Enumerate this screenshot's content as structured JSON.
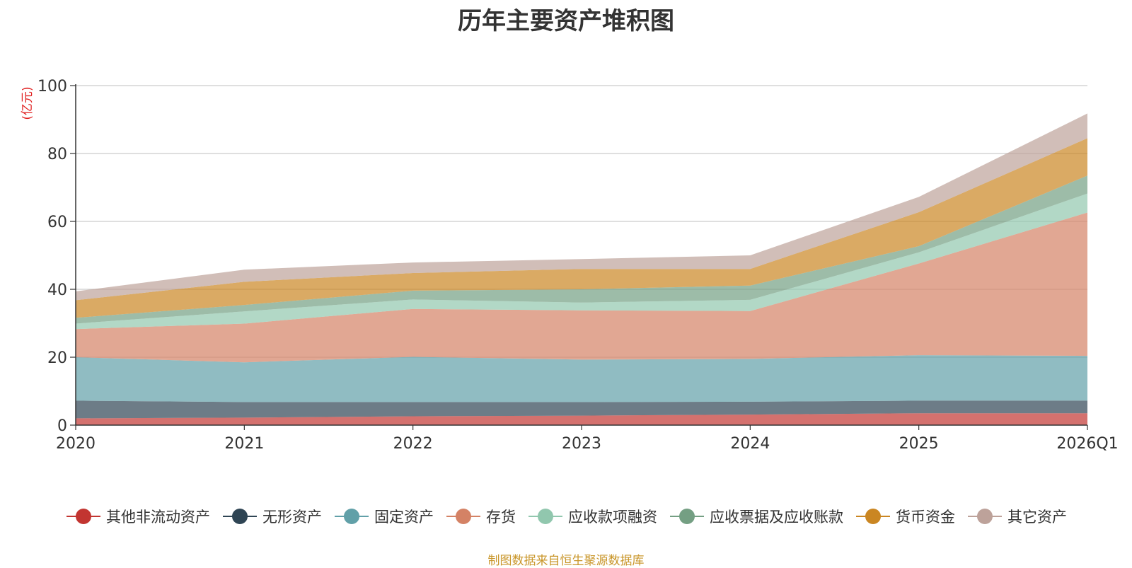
{
  "chart_data": {
    "type": "area",
    "stacked": true,
    "title": "历年主要资产堆积图",
    "ylabel": "(亿元)",
    "xlabel": "",
    "ylim": [
      0,
      100
    ],
    "yticks": [
      "0",
      "20",
      "40",
      "60",
      "80",
      "100"
    ],
    "categories": [
      "2020",
      "2021",
      "2022",
      "2023",
      "2024",
      "2025",
      "2026Q1"
    ],
    "series": [
      {
        "name": "其他非流动资产",
        "color": "#c23531",
        "values": [
          2.0,
          2.2,
          2.6,
          2.8,
          3.1,
          3.5,
          3.5
        ]
      },
      {
        "name": "无形资产",
        "color": "#2f4554",
        "values": [
          5.2,
          4.6,
          4.2,
          4.0,
          3.8,
          3.7,
          3.7
        ]
      },
      {
        "name": "固定资产",
        "color": "#61a0a8",
        "values": [
          12.8,
          11.7,
          13.3,
          12.5,
          12.6,
          13.4,
          13.2
        ]
      },
      {
        "name": "存货",
        "color": "#d48265",
        "values": [
          8.3,
          11.4,
          14.1,
          14.5,
          14.1,
          27.0,
          42.2
        ]
      },
      {
        "name": "应收款项融资",
        "color": "#91c7ae",
        "values": [
          1.6,
          3.6,
          2.8,
          2.3,
          3.3,
          3.3,
          5.6
        ]
      },
      {
        "name": "应收票据及应收账款",
        "color": "#749f83",
        "values": [
          1.7,
          1.9,
          2.6,
          3.9,
          4.2,
          1.8,
          5.3
        ]
      },
      {
        "name": "货币资金",
        "color": "#ca8622",
        "values": [
          5.2,
          6.8,
          5.2,
          6.0,
          4.9,
          10.0,
          11.0
        ]
      },
      {
        "name": "其它资产",
        "color": "#bda29a",
        "values": [
          2.6,
          3.6,
          3.1,
          2.9,
          4.0,
          4.5,
          7.3
        ]
      }
    ]
  },
  "footer": {
    "source": "制图数据来自恒生聚源数据库"
  }
}
